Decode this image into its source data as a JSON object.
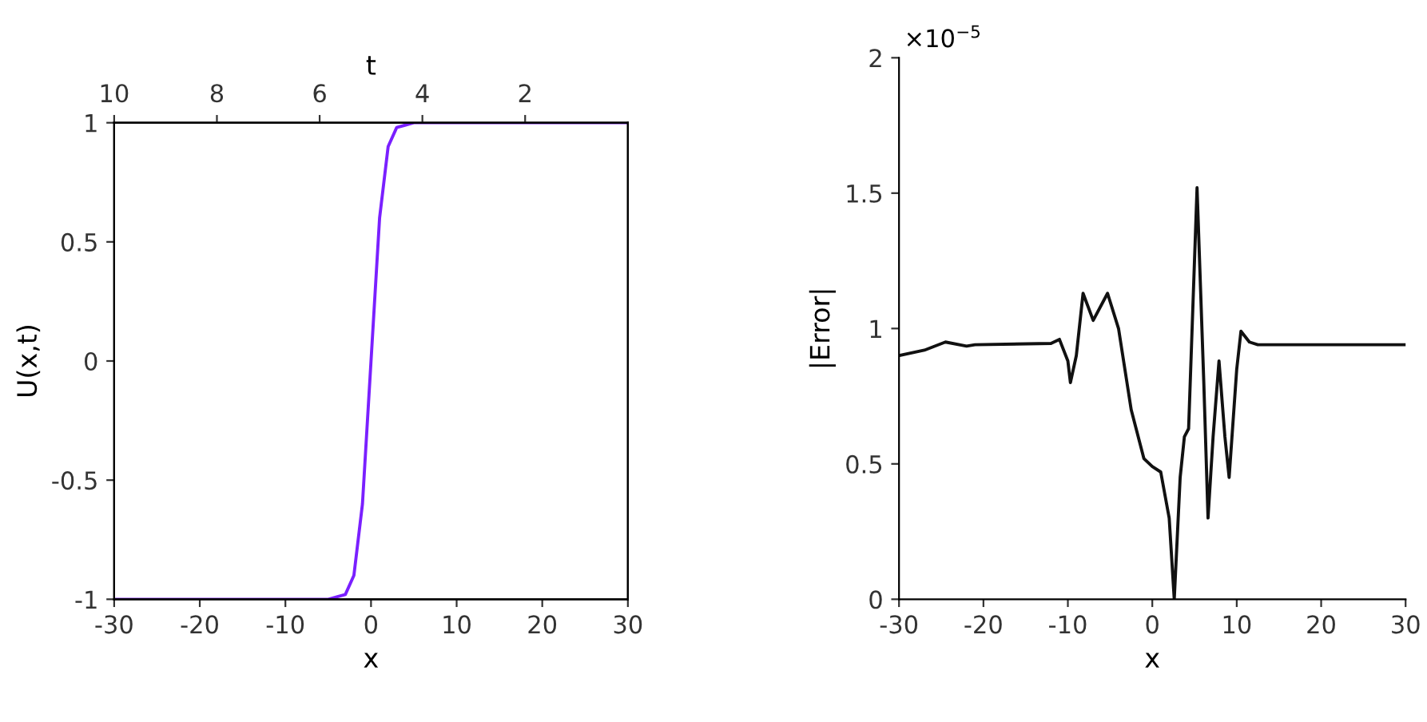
{
  "chart_data": [
    {
      "type": "line",
      "xlabel": "x",
      "ylabel": "U(x,t)",
      "x2label": "t",
      "series": [
        {
          "color": "#7a20ff",
          "x": [
            -30,
            -5,
            -3,
            -2,
            -1,
            0,
            1,
            2,
            3,
            5,
            30
          ],
          "values": [
            -1,
            -1,
            -0.98,
            -0.9,
            -0.6,
            0,
            0.6,
            0.9,
            0.98,
            1,
            1
          ]
        }
      ],
      "xlim": [
        -30,
        30
      ],
      "xticks": [
        -30,
        -20,
        -10,
        0,
        10,
        20,
        30
      ],
      "x2lim": [
        10,
        0
      ],
      "x2ticks": [
        10,
        8,
        6,
        4,
        2
      ],
      "ylim": [
        -1,
        1
      ],
      "yticks": [
        -1,
        -0.5,
        0,
        0.5,
        1
      ],
      "grid": false,
      "marker": "none",
      "line_style": "solid"
    },
    {
      "type": "line",
      "xlabel": "x",
      "ylabel": "|Error|",
      "annotations": [
        "×10$^{−5}$"
      ],
      "series": [
        {
          "color": "#111111",
          "x": [
            -30,
            -27,
            -24.5,
            -22,
            -21,
            -12,
            -11,
            -10,
            -9.7,
            -9,
            -8.2,
            -7,
            -5.3,
            -4,
            -2.5,
            -1,
            0,
            1,
            2,
            2.6,
            3.3,
            3.8,
            4.3,
            5.3,
            6.1,
            6.6,
            7.2,
            7.9,
            8.6,
            9.1,
            10,
            10.5,
            11.5,
            12.5,
            30
          ],
          "values": [
            0.9,
            0.92,
            0.95,
            0.935,
            0.94,
            0.945,
            0.96,
            0.88,
            0.8,
            0.9,
            1.13,
            1.03,
            1.13,
            1.0,
            0.7,
            0.52,
            0.49,
            0.47,
            0.3,
            0.0,
            0.45,
            0.6,
            0.63,
            1.52,
            0.8,
            0.3,
            0.6,
            0.88,
            0.6,
            0.45,
            0.85,
            0.99,
            0.95,
            0.94,
            0.94
          ]
        }
      ],
      "xlim": [
        -30,
        30
      ],
      "xticks": [
        -30,
        -20,
        -10,
        0,
        10,
        20,
        30
      ],
      "ylim": [
        0,
        2
      ],
      "yticks": [
        0,
        0.5,
        1,
        1.5,
        2
      ],
      "grid": false,
      "marker": "none",
      "line_style": "solid"
    }
  ]
}
